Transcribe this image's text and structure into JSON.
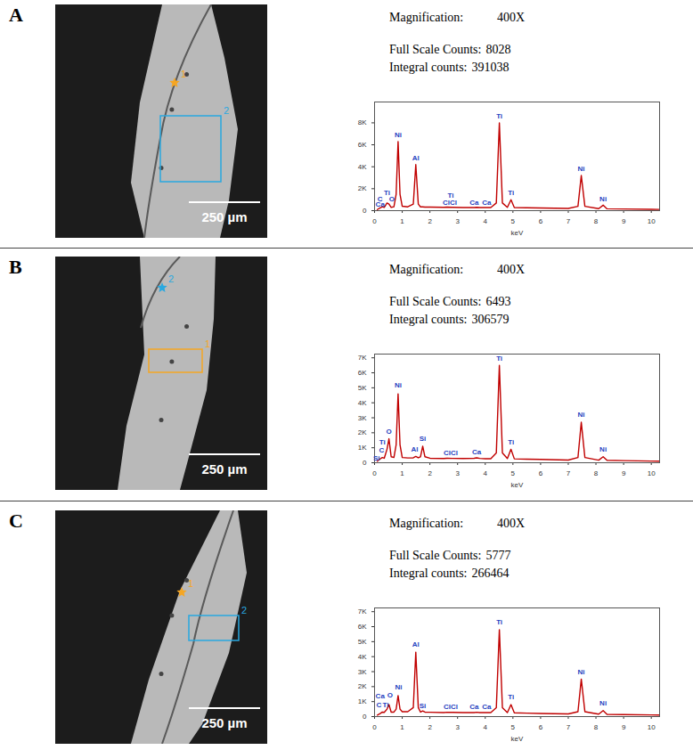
{
  "panels": [
    {
      "letter": "A",
      "image": {
        "scale_bar": "250 µm",
        "point_marker": {
          "label": "1",
          "color": "#f5a623"
        },
        "region_marker": {
          "label": "2",
          "color": "#29a8e0"
        }
      },
      "info": [
        {
          "label": "Magnification:",
          "value": "400X"
        },
        {
          "label": "Full Scale Counts:",
          "value": 8028
        },
        {
          "label": "Integral counts:",
          "value": 391038
        }
      ]
    },
    {
      "letter": "B",
      "image": {
        "scale_bar": "250 µm",
        "point_marker": {
          "label": "2",
          "color": "#29a8e0"
        },
        "region_marker": {
          "label": "1",
          "color": "#f5a623"
        }
      },
      "info": [
        {
          "label": "Magnification:",
          "value": "400X"
        },
        {
          "label": "Full Scale Counts:",
          "value": 6493
        },
        {
          "label": "Integral counts:",
          "value": 306579
        }
      ]
    },
    {
      "letter": "C",
      "image": {
        "scale_bar": "250 µm",
        "point_marker": {
          "label": "1",
          "color": "#f5a623"
        },
        "region_marker": {
          "label": "2",
          "color": "#29a8e0"
        }
      },
      "info": [
        {
          "label": "Magnification:",
          "value": "400X"
        },
        {
          "label": "Full Scale Counts:",
          "value": 5777
        },
        {
          "label": "Integral counts:",
          "value": 266464
        }
      ]
    }
  ],
  "chart_data": [
    {
      "type": "line",
      "x_label": "keV",
      "color": "#c00000",
      "xlim": [
        0,
        10.3
      ],
      "xticks": [
        0,
        1,
        2,
        3,
        4,
        5,
        6,
        7,
        8,
        9,
        10
      ],
      "ylim": [
        0,
        9900
      ],
      "yticks": [
        0,
        {
          "value": 2000,
          "label": "2K"
        },
        {
          "value": 4000,
          "label": "4K"
        },
        {
          "value": 6000,
          "label": "6K"
        },
        {
          "value": 8000,
          "label": "8K"
        }
      ],
      "x": [
        0.1,
        0.2,
        0.28,
        0.35,
        0.45,
        0.52,
        0.6,
        0.7,
        0.78,
        0.85,
        0.92,
        1.0,
        1.2,
        1.4,
        1.49,
        1.58,
        1.66,
        1.74,
        1.82,
        2.0,
        2.5,
        2.62,
        2.8,
        3.2,
        3.6,
        3.69,
        3.8,
        4.0,
        4.2,
        4.4,
        4.51,
        4.62,
        4.8,
        4.93,
        5.05,
        5.5,
        6.0,
        7.0,
        7.35,
        7.47,
        7.6,
        8.1,
        8.26,
        8.4,
        9.0,
        10.0,
        10.3
      ],
      "values": [
        100,
        250,
        350,
        300,
        700,
        600,
        300,
        350,
        1500,
        6300,
        1500,
        400,
        350,
        600,
        4200,
        600,
        350,
        350,
        330,
        320,
        300,
        320,
        310,
        290,
        280,
        300,
        280,
        290,
        290,
        700,
        8000,
        700,
        300,
        1000,
        280,
        260,
        240,
        200,
        400,
        3200,
        400,
        180,
        500,
        170,
        150,
        120,
        110
      ],
      "annotations": [
        {
          "text": "C",
          "x": 0.2,
          "y": 1100
        },
        {
          "text": "Ca",
          "x": 0.2,
          "y": 600
        },
        {
          "text": "Ti",
          "x": 0.45,
          "y": 1600
        },
        {
          "text": "O",
          "x": 0.62,
          "y": 1100
        },
        {
          "text": "Ni",
          "x": 0.85,
          "y": 6900
        },
        {
          "text": "Al",
          "x": 1.49,
          "y": 4800
        },
        {
          "text": "Ti",
          "x": 2.75,
          "y": 1350
        },
        {
          "text": "ClCl",
          "x": 2.72,
          "y": 750
        },
        {
          "text": "Ca",
          "x": 3.6,
          "y": 750
        },
        {
          "text": "Ca",
          "x": 4.05,
          "y": 750
        },
        {
          "text": "Ti",
          "x": 4.51,
          "y": 8600
        },
        {
          "text": "Ti",
          "x": 4.93,
          "y": 1600
        },
        {
          "text": "Ni",
          "x": 7.47,
          "y": 3800
        },
        {
          "text": "Ni",
          "x": 8.26,
          "y": 1100
        }
      ]
    },
    {
      "type": "line",
      "x_label": "keV",
      "color": "#c00000",
      "xlim": [
        0,
        10.3
      ],
      "xticks": [
        0,
        1,
        2,
        3,
        4,
        5,
        6,
        7,
        8,
        9,
        10
      ],
      "ylim": [
        0,
        7250
      ],
      "yticks": [
        0,
        {
          "value": 1000,
          "label": "1K"
        },
        {
          "value": 2000,
          "label": "2K"
        },
        {
          "value": 3000,
          "label": "3K"
        },
        {
          "value": 4000,
          "label": "4K"
        },
        {
          "value": 5000,
          "label": "5K"
        },
        {
          "value": 6000,
          "label": "6K"
        },
        {
          "value": 7000,
          "label": "7K"
        }
      ],
      "x": [
        0.1,
        0.2,
        0.28,
        0.35,
        0.45,
        0.52,
        0.6,
        0.7,
        0.78,
        0.85,
        0.92,
        1.0,
        1.2,
        1.4,
        1.49,
        1.58,
        1.66,
        1.74,
        1.82,
        2.0,
        2.5,
        2.62,
        2.8,
        3.2,
        3.6,
        3.69,
        3.8,
        4.0,
        4.2,
        4.4,
        4.51,
        4.62,
        4.8,
        4.93,
        5.05,
        5.5,
        6.0,
        7.0,
        7.35,
        7.47,
        7.6,
        8.1,
        8.26,
        8.4,
        9.0,
        10.0,
        10.3
      ],
      "values": [
        100,
        250,
        350,
        300,
        900,
        1600,
        400,
        350,
        1200,
        4600,
        1200,
        350,
        320,
        330,
        420,
        330,
        400,
        1100,
        400,
        300,
        280,
        300,
        290,
        280,
        300,
        330,
        290,
        270,
        270,
        650,
        6500,
        650,
        280,
        900,
        260,
        240,
        220,
        180,
        350,
        2700,
        350,
        170,
        400,
        160,
        140,
        110,
        100
      ],
      "annotations": [
        {
          "text": "Si",
          "x": 0.07,
          "y": 300
        },
        {
          "text": "C",
          "x": 0.25,
          "y": 850
        },
        {
          "text": "Ti",
          "x": 0.28,
          "y": 1350
        },
        {
          "text": "O",
          "x": 0.52,
          "y": 2100
        },
        {
          "text": "Ni",
          "x": 0.85,
          "y": 5150
        },
        {
          "text": "Al",
          "x": 1.45,
          "y": 900
        },
        {
          "text": "Si",
          "x": 1.74,
          "y": 1600
        },
        {
          "text": "ClCl",
          "x": 2.75,
          "y": 650
        },
        {
          "text": "Ca",
          "x": 3.69,
          "y": 700
        },
        {
          "text": "Ti",
          "x": 4.51,
          "y": 6950
        },
        {
          "text": "Ti",
          "x": 4.93,
          "y": 1400
        },
        {
          "text": "Ni",
          "x": 7.47,
          "y": 3200
        },
        {
          "text": "Ni",
          "x": 8.26,
          "y": 900
        }
      ]
    },
    {
      "type": "line",
      "x_label": "keV",
      "color": "#c00000",
      "xlim": [
        0,
        10.3
      ],
      "xticks": [
        0,
        1,
        2,
        3,
        4,
        5,
        6,
        7,
        8,
        9,
        10
      ],
      "ylim": [
        0,
        7250
      ],
      "yticks": [
        0,
        {
          "value": 1000,
          "label": "1K"
        },
        {
          "value": 2000,
          "label": "2K"
        },
        {
          "value": 3000,
          "label": "3K"
        },
        {
          "value": 4000,
          "label": "4K"
        },
        {
          "value": 5000,
          "label": "5K"
        },
        {
          "value": 6000,
          "label": "6K"
        },
        {
          "value": 7000,
          "label": "7K"
        }
      ],
      "x": [
        0.1,
        0.2,
        0.28,
        0.35,
        0.45,
        0.52,
        0.6,
        0.7,
        0.78,
        0.85,
        0.92,
        1.0,
        1.2,
        1.4,
        1.49,
        1.58,
        1.66,
        1.74,
        1.82,
        2.0,
        2.5,
        2.62,
        2.8,
        3.2,
        3.6,
        3.69,
        3.8,
        4.0,
        4.2,
        4.4,
        4.51,
        4.62,
        4.8,
        4.93,
        5.05,
        5.5,
        6.0,
        7.0,
        7.35,
        7.47,
        7.6,
        8.1,
        8.26,
        8.4,
        9.0,
        10.0,
        10.3
      ],
      "values": [
        100,
        200,
        300,
        280,
        500,
        800,
        300,
        300,
        500,
        1400,
        500,
        330,
        330,
        600,
        4300,
        600,
        300,
        380,
        300,
        290,
        270,
        290,
        280,
        270,
        270,
        290,
        270,
        270,
        270,
        600,
        5800,
        600,
        270,
        800,
        250,
        230,
        210,
        180,
        330,
        2500,
        330,
        160,
        400,
        150,
        130,
        110,
        100
      ],
      "annotations": [
        {
          "text": "Ca",
          "x": 0.2,
          "y": 1350
        },
        {
          "text": "C",
          "x": 0.16,
          "y": 800
        },
        {
          "text": "Ti",
          "x": 0.4,
          "y": 800
        },
        {
          "text": "O",
          "x": 0.56,
          "y": 1450
        },
        {
          "text": "Ni",
          "x": 0.87,
          "y": 1950
        },
        {
          "text": "Al",
          "x": 1.49,
          "y": 4800
        },
        {
          "text": "Si",
          "x": 1.74,
          "y": 700
        },
        {
          "text": "ClCl",
          "x": 2.75,
          "y": 650
        },
        {
          "text": "Ca",
          "x": 3.6,
          "y": 650
        },
        {
          "text": "Ca",
          "x": 4.05,
          "y": 650
        },
        {
          "text": "Ti",
          "x": 4.51,
          "y": 6300
        },
        {
          "text": "Ti",
          "x": 4.93,
          "y": 1300
        },
        {
          "text": "Ni",
          "x": 7.47,
          "y": 3000
        },
        {
          "text": "Ni",
          "x": 8.26,
          "y": 900
        }
      ]
    }
  ]
}
